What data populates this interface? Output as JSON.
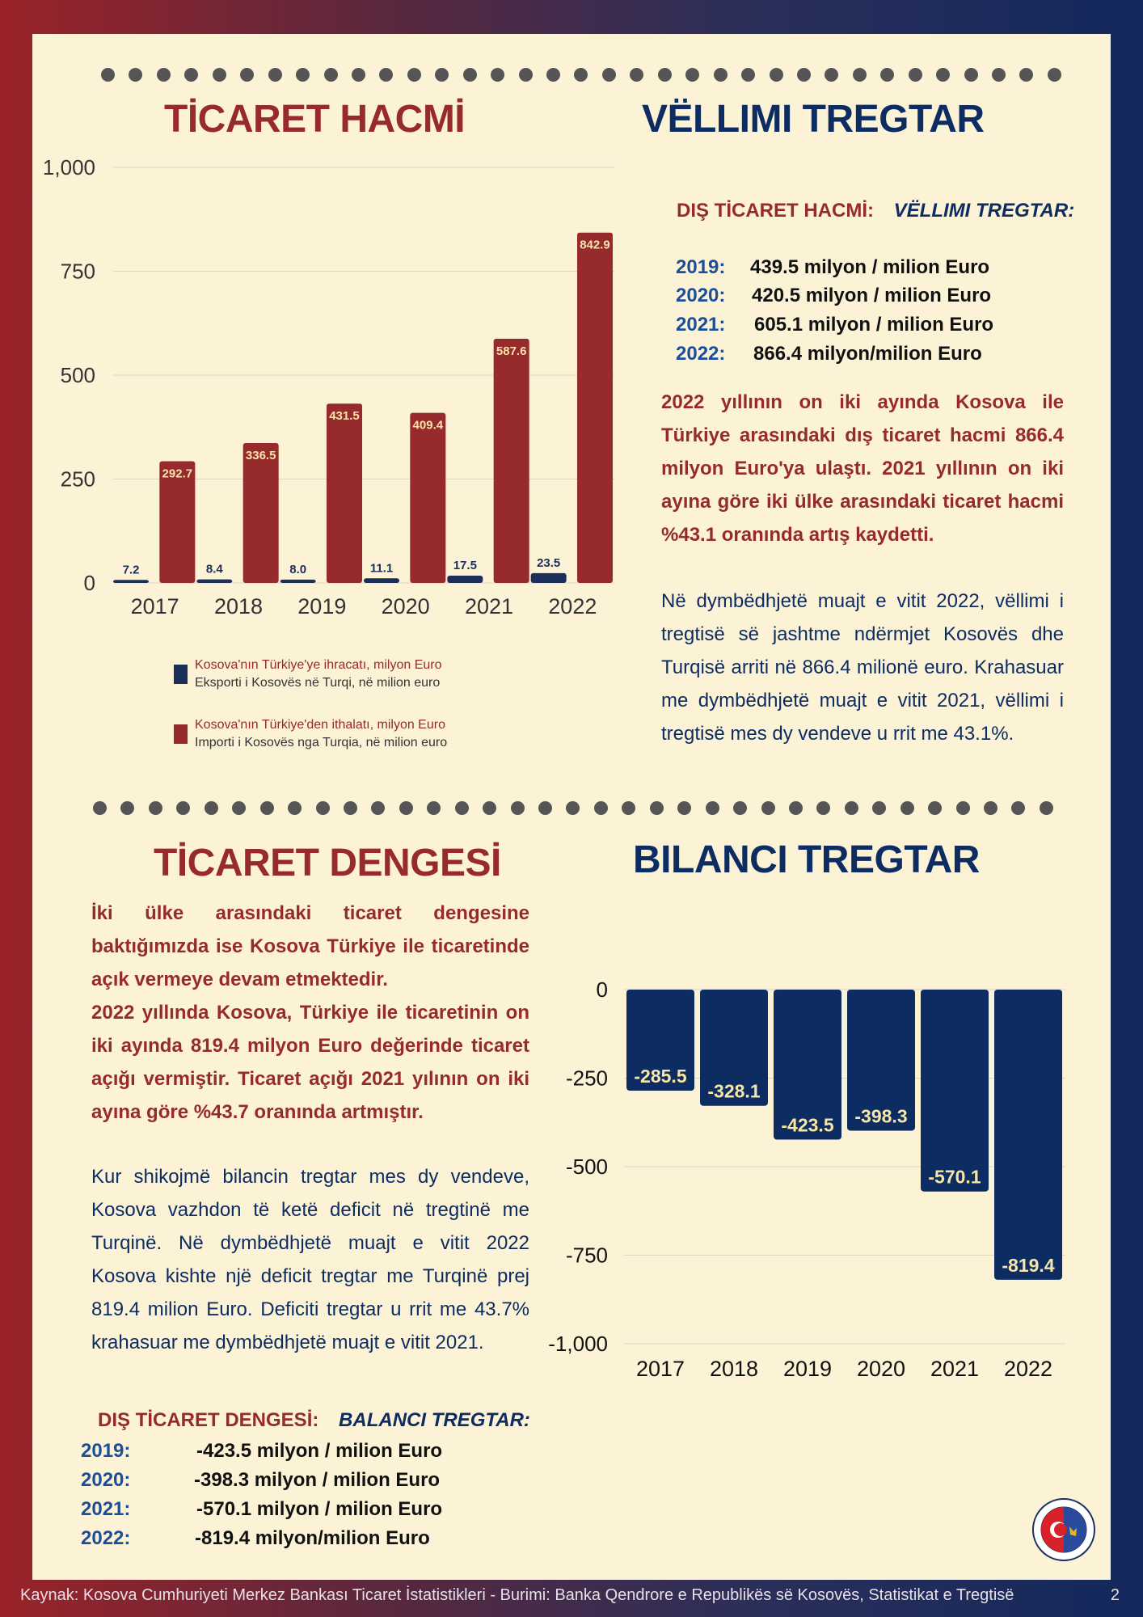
{
  "titles": {
    "volume_tr": "TİCARET HACMİ",
    "volume_sq": "VËLLIMI TREGTAR",
    "balance_tr": "TİCARET DENGESİ",
    "balance_sq": "BILANCI TREGTAR"
  },
  "volume_section": {
    "label_tr": "DIŞ TİCARET HACMİ:",
    "label_sq": "VËLLIMI TREGTAR:",
    "stats": [
      {
        "year": "2019:",
        "value": "439.5  milyon / milion Euro"
      },
      {
        "year": "2020:",
        "value": "420.5 milyon / milion Euro"
      },
      {
        "year": "2021:",
        "value": "605.1 milyon / milion Euro"
      },
      {
        "year": "2022:",
        "value": "866.4 milyon/milion Euro"
      }
    ],
    "para_tr": "2022 yıllının on iki ayında  Kosova ile Türkiye arasındaki dış ticaret hacmi 866.4 milyon Euro'ya ulaştı. 2021 yıllının on iki ayına göre iki ülke arasındaki ticaret hacmi %43.1 oranında artış kaydetti.",
    "para_sq": "Në dymbëdhjetë muajt e  vitit 2022, vëllimi i tregtisë së jashtme ndërmjet Kosovës dhe Turqisë arriti në 866.4 milionë euro. Krahasuar me dymbëdhjetë muajt e vitit 2021, vëllimi i tregtisë mes dy vendeve u rrit me 43.1%."
  },
  "balance_section": {
    "para_tr_1": "İki ülke arasındaki ticaret dengesine baktığımızda ise Kosova Türkiye ile ticaretinde açık vermeye devam etmektedir.",
    "para_tr_2": "2022 yıllında Kosova, Türkiye ile ticaretinin on iki ayında 819.4 milyon Euro değerinde ticaret açığı vermiştir. Ticaret açığı 2021 yılının  on iki ayına göre %43.7 oranında artmıştır.",
    "para_sq": "Kur shikojmë bilancin tregtar mes dy vendeve, Kosova vazhdon të ketë deficit në tregtinë me Turqinë. Në dymbëdhjetë muajt e vitit 2022 Kosova kishte një deficit tregtar me Turqinë prej 819.4 milion Euro. Deficiti tregtar u rrit me 43.7% krahasuar me dymbëdhjetë muajt e vitit 2021.",
    "label_tr": "DIŞ TİCARET DENGESİ:",
    "label_sq": "BALANCI TREGTAR:",
    "stats": [
      {
        "year": "2019:",
        "value": "-423.5  milyon / milion Euro"
      },
      {
        "year": "2020:",
        "value": "-398.3 milyon / milion Euro"
      },
      {
        "year": "2021:",
        "value": "-570.1 milyon / milion Euro"
      },
      {
        "year": "2022:",
        "value": "-819.4 milyon/milion Euro"
      }
    ]
  },
  "legend": [
    {
      "tr": "Kosova'nın Türkiye'ye ihracatı, milyon Euro",
      "sq": "Eksporti i Kosovës në Turqi, në milion euro",
      "color": "#1c2e5a"
    },
    {
      "tr": "Kosova'nın Türkiye'den ithalatı, milyon Euro",
      "sq": "Importi i Kosovës nga Turqia, në milion euro",
      "color": "#962a2c"
    }
  ],
  "footer": {
    "source": "Kaynak: Kosova Cumhuriyeti Merkez Bankası Ticaret İstatistikleri -   Burimi: Banka Qendrore e Republikës së Kosovës, Statistikat e Tregtisë",
    "page": "2"
  },
  "chart_data": [
    {
      "type": "bar",
      "categories": [
        "2017",
        "2018",
        "2019",
        "2020",
        "2021",
        "2022"
      ],
      "series": [
        {
          "name": "Kosova'nın Türkiye'ye ihracatı, milyon Euro",
          "values": [
            7.2,
            8.4,
            8.0,
            11.1,
            17.5,
            23.5
          ],
          "color": "#1c2e5a"
        },
        {
          "name": "Kosova'nın Türkiye'den ithalatı, milyon Euro",
          "values": [
            292.7,
            336.5,
            431.5,
            409.4,
            587.6,
            842.9
          ],
          "color": "#962a2c"
        }
      ],
      "labels": [
        [
          "7.2",
          "8.4",
          "8.0",
          "11.1",
          "17.5",
          "23.5"
        ],
        [
          "292.7",
          "336.5",
          "431.5",
          "409.4",
          "587.6",
          "842.9"
        ]
      ],
      "yticks": [
        "0",
        "250",
        "500",
        "750",
        "1,000"
      ],
      "ylim": [
        0,
        1000
      ]
    },
    {
      "type": "bar",
      "categories": [
        "2017",
        "2018",
        "2019",
        "2020",
        "2021",
        "2022"
      ],
      "values": [
        -285.5,
        -328.1,
        -423.5,
        -398.3,
        -570.1,
        -819.4
      ],
      "labels": [
        "-285.5",
        "-328.1",
        "-423.5",
        "-398.3",
        "-570.1",
        "-819.4"
      ],
      "color": "#0c2c62",
      "yticks": [
        "0",
        "-250",
        "-500",
        "-750",
        "-1,000"
      ],
      "ylim": [
        -1000,
        0
      ]
    }
  ]
}
